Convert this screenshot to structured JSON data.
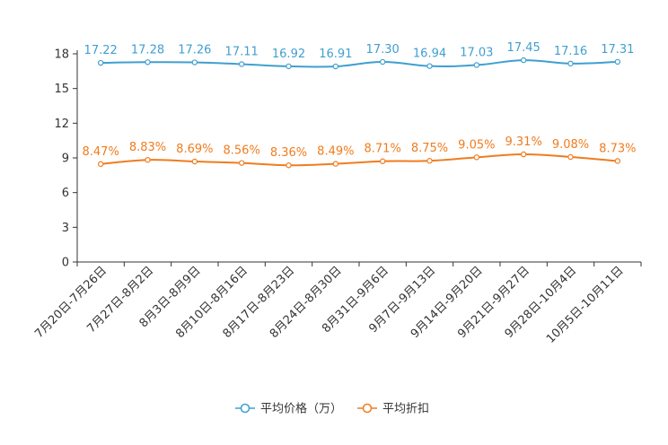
{
  "chart_data": {
    "type": "line",
    "categories": [
      "7月20日-7月26日",
      "7月27日-8月2日",
      "8月3日-8月9日",
      "8月10日-8月16日",
      "8月17日-8月23日",
      "8月24日-8月30日",
      "8月31日-9月6日",
      "9月7日-9月13日",
      "9月14日-9月20日",
      "9月21日-9月27日",
      "9月28日-10月4日",
      "10月5日-10月11日"
    ],
    "series": [
      {
        "name": "平均价格（万）",
        "color": "#3f9fd0",
        "values": [
          17.22,
          17.28,
          17.26,
          17.11,
          16.92,
          16.91,
          17.3,
          16.94,
          17.03,
          17.45,
          17.16,
          17.31
        ],
        "labels": [
          "17.22",
          "17.28",
          "17.26",
          "17.11",
          "16.92",
          "16.91",
          "17.30",
          "16.94",
          "17.03",
          "17.45",
          "17.16",
          "17.31"
        ]
      },
      {
        "name": "平均折扣",
        "color": "#f07c1e",
        "values": [
          8.47,
          8.83,
          8.69,
          8.56,
          8.36,
          8.49,
          8.71,
          8.75,
          9.05,
          9.31,
          9.08,
          8.73
        ],
        "labels": [
          "8.47%",
          "8.83%",
          "8.69%",
          "8.56%",
          "8.36%",
          "8.49%",
          "8.71%",
          "8.75%",
          "9.05%",
          "9.31%",
          "9.08%",
          "8.73%"
        ]
      }
    ],
    "ylim": [
      0,
      18
    ],
    "yticks": [
      "0",
      "3",
      "6",
      "9",
      "12",
      "15",
      "18"
    ],
    "title": "",
    "xlabel": "",
    "ylabel": "",
    "legend_position": "bottom-center",
    "grid": false
  }
}
